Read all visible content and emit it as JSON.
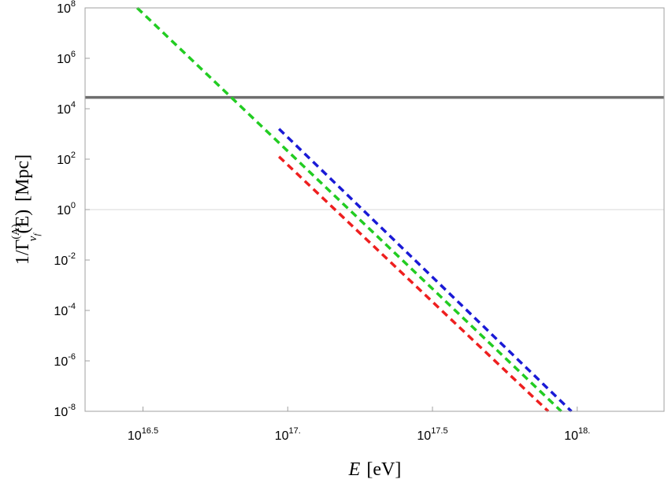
{
  "chart_data": {
    "type": "line",
    "xlabel_var": "E",
    "xlabel_unit": "[eV]",
    "ylabel_main": "1/Γ",
    "ylabel_sup": "(A)",
    "ylabel_sub": "ν",
    "ylabel_subsub": "f",
    "ylabel_arg": "(E)",
    "ylabel_unit": "[Mpc]",
    "x_scale": "log",
    "y_scale": "log",
    "xlim_log10": [
      16.3,
      18.3
    ],
    "ylim_log10": [
      -8,
      8
    ],
    "x_ticks": [
      {
        "base": "10",
        "exp": "16.5",
        "log10": 16.5
      },
      {
        "base": "10",
        "exp": "17.",
        "log10": 17.0
      },
      {
        "base": "10",
        "exp": "17.5",
        "log10": 17.5
      },
      {
        "base": "10",
        "exp": "18.",
        "log10": 18.0
      }
    ],
    "y_ticks": [
      {
        "base": "10",
        "exp": "8",
        "log10": 8
      },
      {
        "base": "10",
        "exp": "6",
        "log10": 6
      },
      {
        "base": "10",
        "exp": "4",
        "log10": 4
      },
      {
        "base": "10",
        "exp": "2",
        "log10": 2
      },
      {
        "base": "10",
        "exp": "0",
        "log10": 0
      },
      {
        "base": "10",
        "exp": "-2",
        "log10": -2
      },
      {
        "base": "10",
        "exp": "-4",
        "log10": -4
      },
      {
        "base": "10",
        "exp": "-6",
        "log10": -6
      },
      {
        "base": "10",
        "exp": "-8",
        "log10": -8
      }
    ],
    "gridlines_y_log10": [
      0
    ],
    "reference_line": {
      "y_log10": 4.45,
      "color": "#6e6e6e"
    },
    "series": [
      {
        "color": "#1a1ad6",
        "style": "dashed",
        "x_log10": [
          16.97,
          17.98
        ],
        "y_log10": [
          3.2,
          -8.0
        ]
      },
      {
        "color": "#22cc22",
        "style": "dashed",
        "x_log10": [
          16.48,
          17.945
        ],
        "y_log10": [
          8.0,
          -8.0
        ]
      },
      {
        "color": "#ee1f1f",
        "style": "dashed",
        "x_log10": [
          16.97,
          17.9
        ],
        "y_log10": [
          2.1,
          -8.0
        ]
      }
    ],
    "frame_color": "#a0a0a0",
    "grid_color": "#d8d8d8"
  }
}
